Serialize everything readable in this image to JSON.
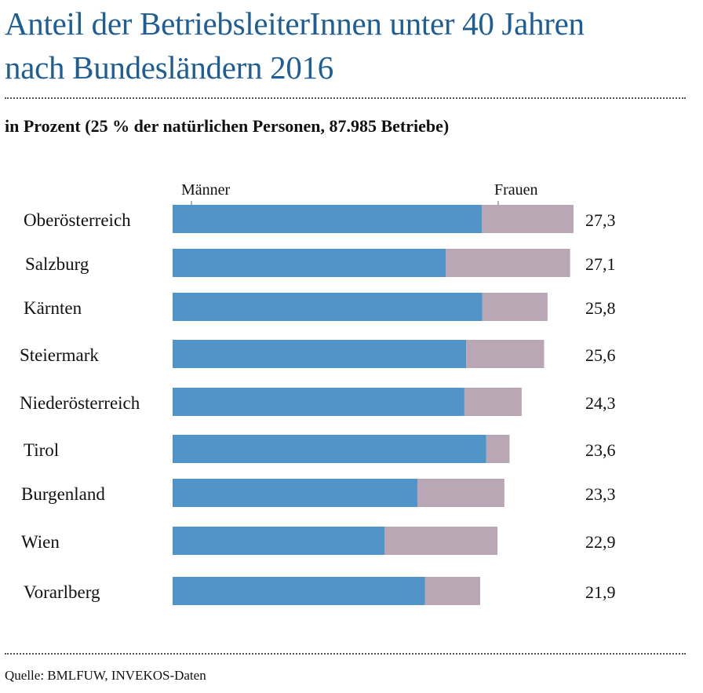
{
  "header": {
    "title_line1": "Anteil der BetriebsleiterInnen unter 40 Jahren",
    "title_line2": "nach Bundesländern 2016",
    "subtitle": "in Prozent (25 % der natürlichen Personen, 87.985 Betriebe)"
  },
  "footer": {
    "source": "Quelle: BMLFUW, INVEKOS-Daten"
  },
  "colors": {
    "title": "#1f5e94",
    "maenner": "#5094c8",
    "frauen": "#b9a7b6"
  },
  "chart_data": {
    "type": "bar",
    "orientation": "horizontal",
    "stacked": true,
    "title": "Anteil der BetriebsleiterInnen unter 40 Jahren nach Bundesländern 2016",
    "subtitle": "in Prozent (25 % der natürlichen Personen, 87.985 Betriebe)",
    "unit": "Prozent",
    "legend": [
      "Männer",
      "Frauen"
    ],
    "legend_placement": "top",
    "categories": [
      "Oberösterreich",
      "Salzburg",
      "Kärnten",
      "Steiermark",
      "Niederösterreich",
      "Tirol",
      "Burgenland",
      "Wien",
      "Vorarlberg"
    ],
    "totals": [
      27.3,
      27.1,
      25.8,
      25.6,
      24.3,
      23.6,
      23.3,
      22.9,
      21.9
    ],
    "total_labels": [
      "27,3",
      "27,1",
      "25,8",
      "25,6",
      "24,3",
      "23,6",
      "23,3",
      "22,9",
      "21,9"
    ],
    "series": [
      {
        "name": "Männer",
        "share_of_total_percent": [
          77.1,
          68.7,
          82.6,
          79.0,
          83.6,
          93.1,
          73.8,
          65.3,
          82.1
        ]
      },
      {
        "name": "Frauen",
        "share_of_total_percent": [
          22.9,
          31.3,
          17.4,
          21.0,
          16.4,
          6.9,
          26.2,
          34.7,
          17.9
        ]
      }
    ],
    "grid": false
  }
}
